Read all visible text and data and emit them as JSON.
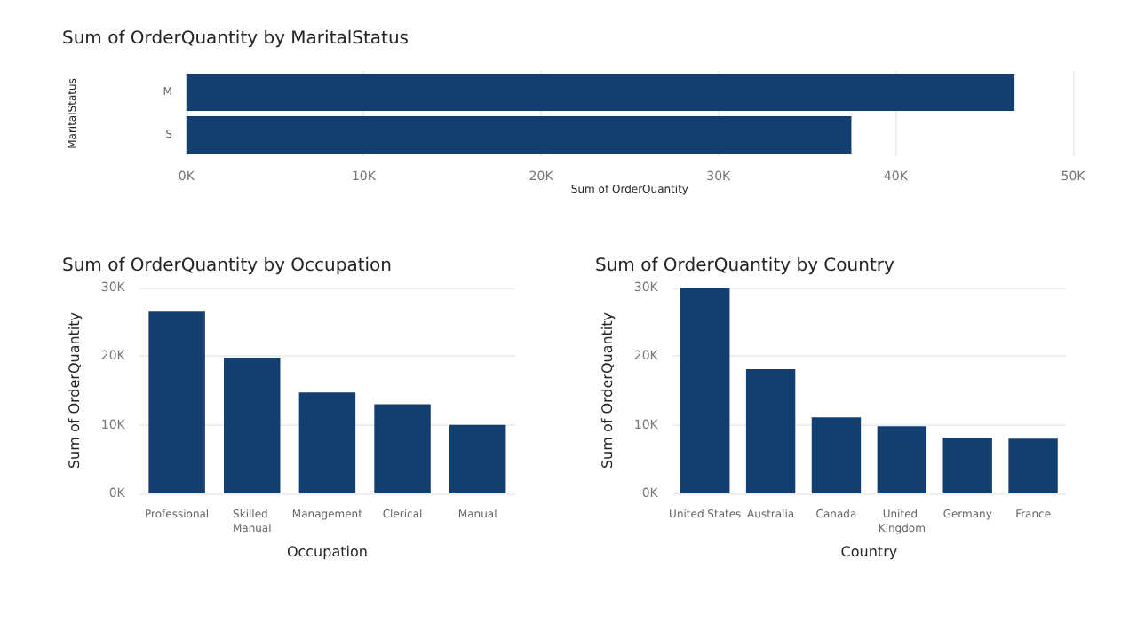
{
  "chart_data": [
    {
      "type": "bar",
      "orientation": "horizontal",
      "title": "Sum of OrderQuantity by MaritalStatus",
      "xlabel": "Sum of OrderQuantity",
      "ylabel": "MaritalStatus",
      "categories": [
        "M",
        "S"
      ],
      "values": [
        46700,
        37500
      ],
      "color": "#123f6f",
      "xlim": [
        0,
        50000
      ],
      "xticks": [
        {
          "value": 0,
          "label": "0K"
        },
        {
          "value": 10000,
          "label": "10K"
        },
        {
          "value": 20000,
          "label": "20K"
        },
        {
          "value": 30000,
          "label": "30K"
        },
        {
          "value": 40000,
          "label": "40K"
        },
        {
          "value": 50000,
          "label": "50K"
        }
      ],
      "grid": true
    },
    {
      "type": "bar",
      "title": "Sum of OrderQuantity by Occupation",
      "xlabel": "Occupation",
      "ylabel": "Sum of OrderQuantity",
      "categories": [
        "Professional",
        "Skilled Manual",
        "Management",
        "Clerical",
        "Manual"
      ],
      "values": [
        26600,
        19800,
        14700,
        13000,
        10000
      ],
      "color": "#123f6f",
      "ylim": [
        0,
        30000
      ],
      "yticks": [
        {
          "value": 0,
          "label": "0K"
        },
        {
          "value": 10000,
          "label": "10K"
        },
        {
          "value": 20000,
          "label": "20K"
        },
        {
          "value": 30000,
          "label": "30K"
        }
      ],
      "grid": true
    },
    {
      "type": "bar",
      "title": "Sum of OrderQuantity by Country",
      "xlabel": "Country",
      "ylabel": "Sum of OrderQuantity",
      "categories": [
        "United States",
        "Australia",
        "Canada",
        "United Kingdom",
        "Germany",
        "France"
      ],
      "values": [
        30000,
        18100,
        11100,
        9800,
        8100,
        8000
      ],
      "color": "#123f6f",
      "ylim": [
        0,
        30000
      ],
      "yticks": [
        {
          "value": 0,
          "label": "0K"
        },
        {
          "value": 10000,
          "label": "10K"
        },
        {
          "value": 20000,
          "label": "20K"
        },
        {
          "value": 30000,
          "label": "30K"
        }
      ],
      "grid": true
    }
  ]
}
